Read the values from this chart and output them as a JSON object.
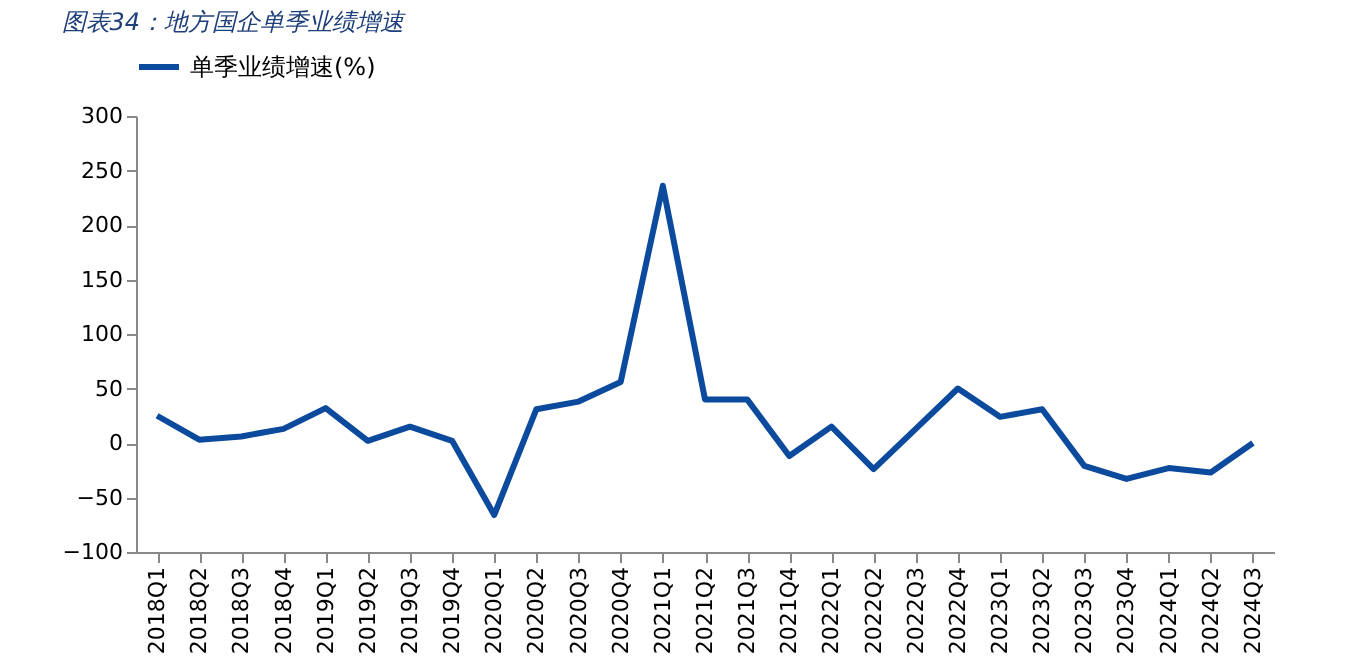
{
  "chart_data": {
    "type": "line",
    "title": "图表34：地方国企单季业绩增速",
    "categories": [
      "2018Q1",
      "2018Q2",
      "2018Q3",
      "2018Q4",
      "2019Q1",
      "2019Q2",
      "2019Q3",
      "2019Q4",
      "2020Q1",
      "2020Q2",
      "2020Q3",
      "2020Q4",
      "2021Q1",
      "2021Q2",
      "2021Q3",
      "2021Q4",
      "2022Q1",
      "2022Q2",
      "2022Q3",
      "2022Q4",
      "2023Q1",
      "2023Q2",
      "2023Q3",
      "2023Q4",
      "2024Q1",
      "2024Q2",
      "2024Q3"
    ],
    "series": [
      {
        "name": "单季业绩增速(%)",
        "color": "#0b4a9c",
        "values": [
          25,
          3,
          6,
          13,
          32,
          2,
          15,
          2,
          -66,
          31,
          38,
          56,
          236,
          40,
          40,
          -12,
          15,
          -24,
          13,
          50,
          24,
          31,
          -21,
          -33,
          -23,
          -27,
          0
        ]
      }
    ],
    "ylim": [
      -100,
      300
    ],
    "yticks": [
      -100,
      -50,
      0,
      50,
      100,
      150,
      200,
      250,
      300
    ],
    "grid": false,
    "legend": "top",
    "marker": "none",
    "line_style": "solid"
  }
}
